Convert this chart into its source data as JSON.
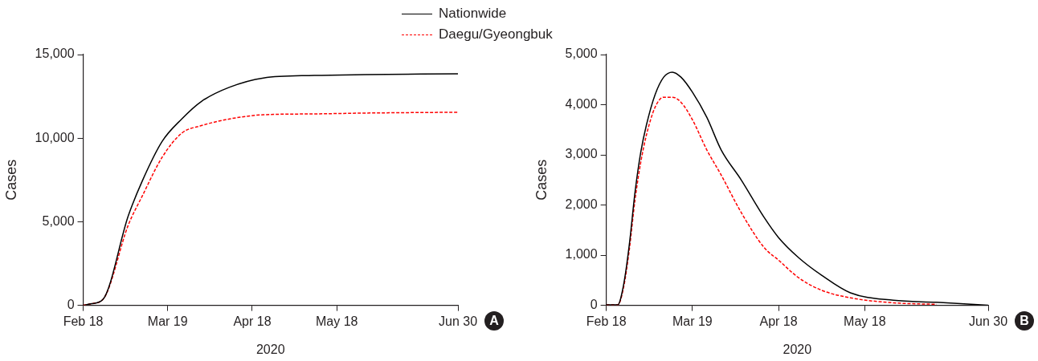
{
  "chart_data": [
    {
      "type": "line",
      "legend": "top",
      "marker": "none",
      "xlabel": "2020",
      "ylabel": "Cases",
      "annotations": [
        "A"
      ],
      "xlim": [
        "2020-02-18",
        "2020-06-30"
      ],
      "xticks": [
        {
          "value": "2020-02-18",
          "label": "Feb 18"
        },
        {
          "value": "2020-03-19",
          "label": "Mar 19"
        },
        {
          "value": "2020-04-18",
          "label": "Apr 18"
        },
        {
          "value": "2020-05-18",
          "label": "May 18"
        },
        {
          "value": "2020-06-30",
          "label": "Jun 30"
        }
      ],
      "ylim": [
        0,
        15000
      ],
      "yticks": [
        0,
        {
          "value": 5000,
          "label": "5,000"
        },
        {
          "value": 10000,
          "label": "10,000"
        },
        {
          "value": 15000,
          "label": "15,000"
        }
      ],
      "x": [
        "2020-02-18",
        "2020-02-21",
        "2020-02-25",
        "2020-03-05",
        "2020-03-10",
        "2020-03-17",
        "2020-03-24",
        "2020-03-31",
        "2020-04-10",
        "2020-04-22",
        "2020-05-10",
        "2020-05-28",
        "2020-06-30"
      ],
      "series": [
        {
          "name": "Nationwide",
          "color": "#000000",
          "line_style": "solid",
          "values": [
            0,
            100,
            350,
            5350,
            7450,
            9800,
            11150,
            12200,
            13050,
            13600,
            13750,
            13800,
            13850
          ]
        },
        {
          "name": "Daegu/Gyeongbuk",
          "color": "#ff0000",
          "line_style": "dashed",
          "values": [
            0,
            100,
            350,
            4800,
            6550,
            8850,
            10300,
            10750,
            11150,
            11400,
            11450,
            11500,
            11550
          ]
        }
      ]
    },
    {
      "type": "line",
      "legend": false,
      "marker": "none",
      "xlabel": "2020",
      "ylabel": "Cases",
      "annotations": [
        "B"
      ],
      "xlim": [
        "2020-02-18",
        "2020-06-30"
      ],
      "xticks": [
        {
          "value": "2020-02-18",
          "label": "Feb 18"
        },
        {
          "value": "2020-03-19",
          "label": "Mar 19"
        },
        {
          "value": "2020-04-18",
          "label": "Apr 18"
        },
        {
          "value": "2020-05-18",
          "label": "May 18"
        },
        {
          "value": "2020-06-30",
          "label": "Jun 30"
        }
      ],
      "ylim": [
        0,
        5000
      ],
      "yticks": [
        0,
        {
          "value": 1000,
          "label": "1,000"
        },
        {
          "value": 2000,
          "label": "2,000"
        },
        {
          "value": 3000,
          "label": "3,000"
        },
        {
          "value": 4000,
          "label": "4,000"
        },
        {
          "value": 5000,
          "label": "5,000"
        }
      ],
      "x": [
        "2020-02-18",
        "2020-02-22",
        "2020-02-24",
        "2020-02-26",
        "2020-02-28",
        "2020-03-01",
        "2020-03-03",
        "2020-03-06",
        "2020-03-09",
        "2020-03-12",
        "2020-03-15",
        "2020-03-19",
        "2020-03-24",
        "2020-03-29",
        "2020-04-05",
        "2020-04-13",
        "2020-04-18",
        "2020-04-25",
        "2020-05-03",
        "2020-05-13",
        "2020-05-28",
        "2020-06-12",
        "2020-06-30"
      ],
      "series": [
        {
          "color": "#000000",
          "line_style": "solid",
          "values": [
            10,
            10,
            400,
            1200,
            2250,
            3050,
            3600,
            4200,
            4550,
            4650,
            4550,
            4250,
            3750,
            3100,
            2500,
            1750,
            1350,
            950,
            600,
            250,
            100,
            60,
            0
          ]
        },
        {
          "color": "#ff0000",
          "line_style": "dashed",
          "values": [
            10,
            10,
            350,
            1100,
            2100,
            2850,
            3400,
            3950,
            4150,
            4150,
            4050,
            3700,
            3100,
            2600,
            1850,
            1150,
            900,
            550,
            300,
            150,
            50,
            20,
            null
          ]
        }
      ]
    }
  ]
}
